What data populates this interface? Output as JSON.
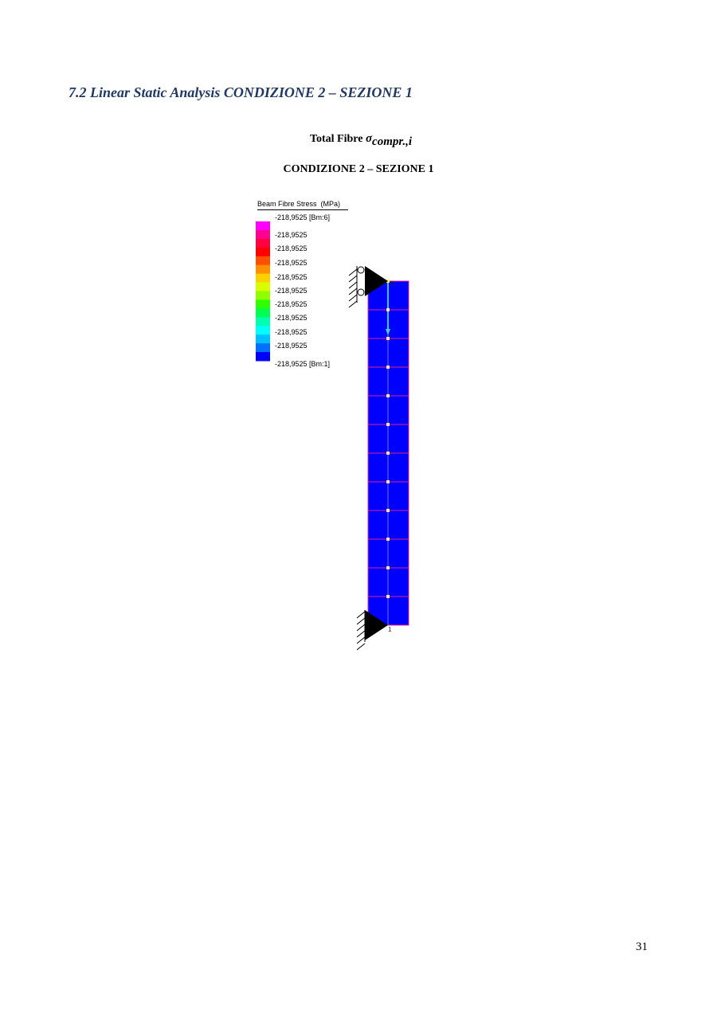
{
  "heading": "7.2 Linear Static Analysis CONDIZIONE 2 – SEZIONE 1",
  "caption": {
    "prefix": "Total Fibre ",
    "symbol": "σ",
    "subscript": "compr.,i",
    "condition": "CONDIZIONE 2 – SEZIONE 1"
  },
  "legend": {
    "title": "Beam Fibre Stress  (MPa)",
    "labels": [
      "-218,9525 [Bm:6]",
      "-218,9525",
      "-218,9525",
      "-218,9525",
      "-218,9525",
      "-218,9525",
      "-218,9525",
      "-218,9525",
      "-218,9525",
      "-218,9525",
      "-218,9525 [Bm:1]"
    ],
    "colors": [
      "#ff00ff",
      "#ff0090",
      "#ff0040",
      "#ff0000",
      "#ff5000",
      "#ff9000",
      "#ffd000",
      "#d8ff00",
      "#90ff00",
      "#30ff00",
      "#00ff50",
      "#00ffb0",
      "#00ffff",
      "#00c0ff",
      "#0070ff",
      "#0000ff"
    ]
  },
  "beam": {
    "fill": "#0000ff",
    "segments": 12,
    "top_node": "6",
    "bottom_node": "1"
  },
  "page_number": "31"
}
